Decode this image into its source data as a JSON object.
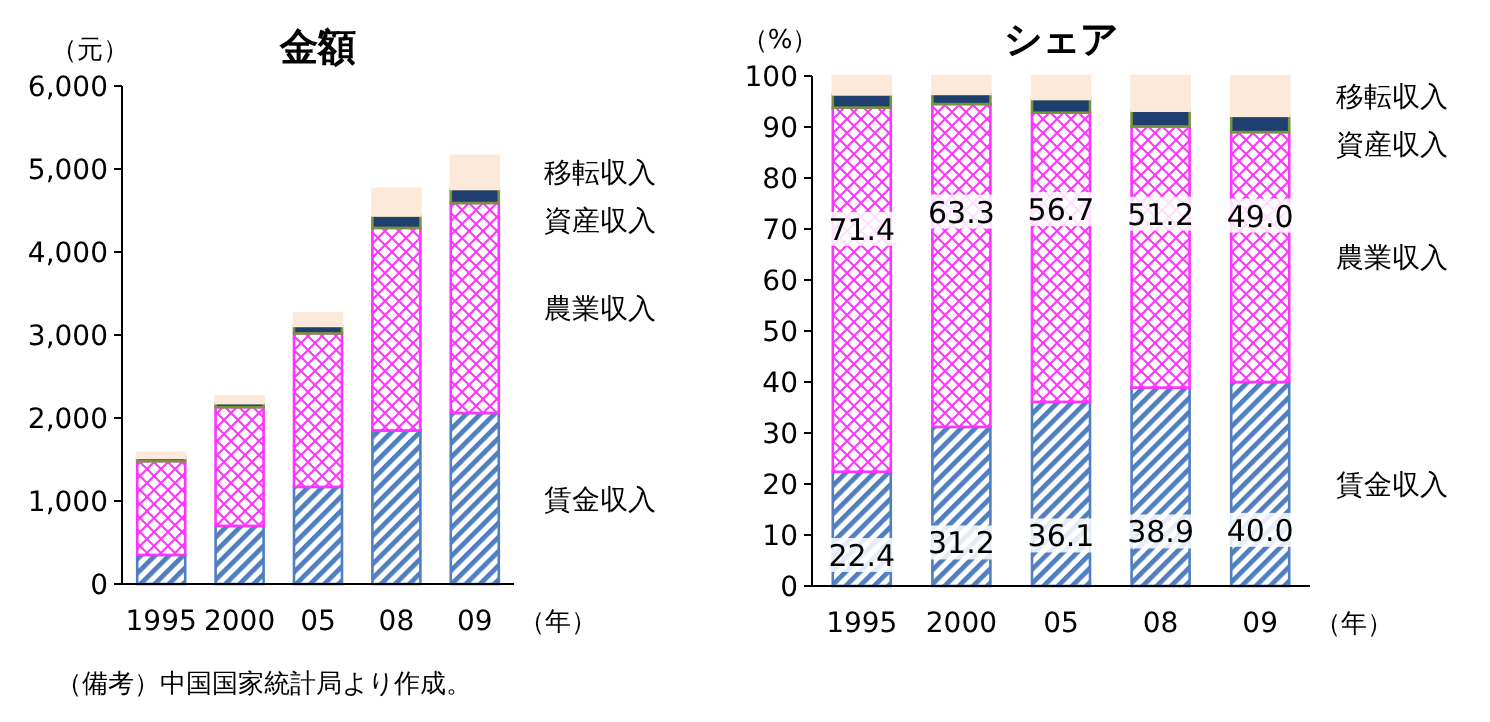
{
  "chart_data": [
    {
      "type": "bar",
      "title": "金額",
      "ylabel": "（元）",
      "xlabel": "（年）",
      "stacked": true,
      "legend": false,
      "categories": [
        "1995",
        "2000",
        "05",
        "08",
        "09"
      ],
      "series": [
        {
          "name": "賃金収入",
          "color": "#4f7fbf",
          "values": [
            350,
            700,
            1170,
            1850,
            2060
          ]
        },
        {
          "name": "農業収入",
          "color": "#ff33ff",
          "values": [
            1130,
            1430,
            1850,
            2440,
            2530
          ]
        },
        {
          "name": "資産収入",
          "color": "#1f3f6f",
          "values": [
            40,
            50,
            90,
            150,
            170
          ]
        },
        {
          "name": "移転収入",
          "color": "#fde9d9",
          "values": [
            60,
            80,
            150,
            320,
            400
          ]
        }
      ],
      "ylim": [
        0,
        6000
      ],
      "yticks": [
        0,
        {
          "value": 1000,
          "label": "1,000"
        },
        {
          "value": 2000,
          "label": "2,000"
        },
        {
          "value": 3000,
          "label": "3,000"
        },
        {
          "value": 4000,
          "label": "4,000"
        },
        {
          "value": 5000,
          "label": "5,000"
        },
        {
          "value": 6000,
          "label": "6,000"
        }
      ],
      "annotations": [
        "（備考）中国国家統計局より作成。"
      ]
    },
    {
      "type": "bar",
      "title": "シェア",
      "ylabel": "（%）",
      "xlabel": "（年）",
      "stacked": true,
      "legend": false,
      "categories": [
        "1995",
        "2000",
        "05",
        "08",
        "09"
      ],
      "series": [
        {
          "name": "賃金収入",
          "color": "#4f7fbf",
          "values": [
            22.4,
            31.2,
            36.1,
            38.9,
            40.0
          ],
          "value_labels": [
            "22.4",
            "31.2",
            "36.1",
            "38.9",
            "40.0"
          ]
        },
        {
          "name": "農業収入",
          "color": "#ff33ff",
          "values": [
            71.4,
            63.3,
            56.7,
            51.2,
            49.0
          ],
          "value_labels": [
            "71.4",
            "63.3",
            "56.7",
            "51.2",
            "49.0"
          ]
        },
        {
          "name": "資産収入",
          "color": "#1f3f6f",
          "values": [
            2.6,
            2.0,
            2.7,
            3.1,
            3.2
          ]
        },
        {
          "name": "移転収入",
          "color": "#fde9d9",
          "values": [
            3.6,
            3.5,
            4.5,
            6.8,
            7.7
          ]
        }
      ],
      "ylim": [
        0,
        100
      ],
      "yticks": [
        0,
        10,
        20,
        30,
        40,
        50,
        60,
        70,
        80,
        90,
        100
      ]
    }
  ]
}
